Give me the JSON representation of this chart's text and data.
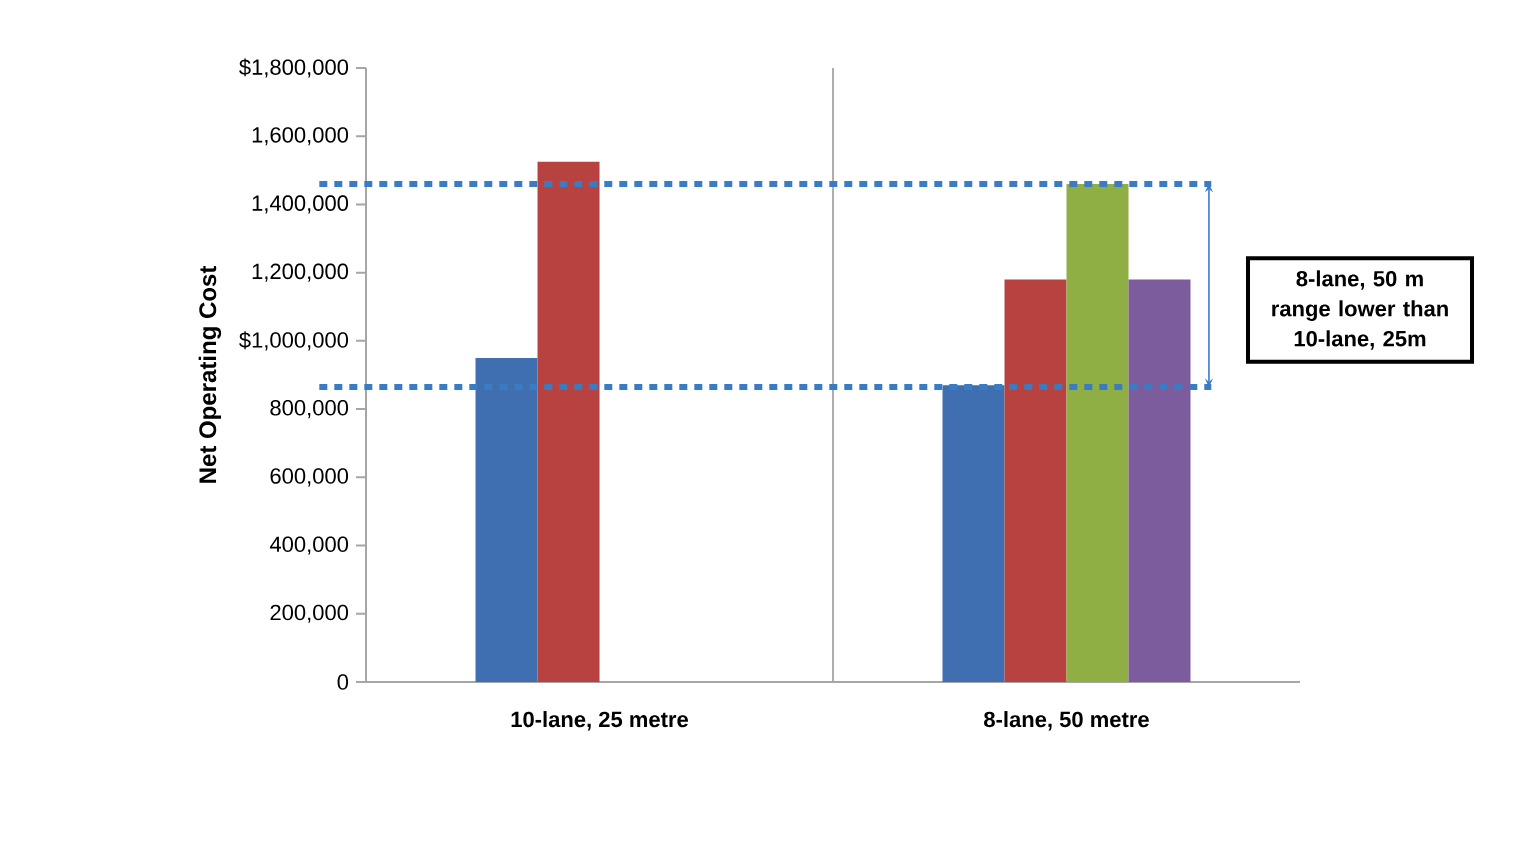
{
  "chart_data": {
    "type": "bar",
    "ylabel": "Net Operating Cost",
    "categories": [
      "10-lane, 25 metre",
      "8-lane, 50 metre"
    ],
    "series": [
      {
        "color": "#3f6fb0",
        "values": [
          950000,
          870000
        ]
      },
      {
        "color": "#b8423f",
        "values": [
          1525000,
          1180000
        ]
      },
      {
        "color": "#8fae44",
        "values": [
          null,
          1460000
        ]
      },
      {
        "color": "#7c5c9c",
        "values": [
          null,
          1180000
        ]
      }
    ],
    "ylim": [
      0,
      1800000
    ],
    "yticks": [
      {
        "value": 0,
        "label": "0"
      },
      {
        "value": 200000,
        "label": "200,000"
      },
      {
        "value": 400000,
        "label": "400,000"
      },
      {
        "value": 600000,
        "label": "600,000"
      },
      {
        "value": 800000,
        "label": "800,000"
      },
      {
        "value": 1000000,
        "label": "$1,000,000"
      },
      {
        "value": 1200000,
        "label": "1,200,000"
      },
      {
        "value": 1400000,
        "label": "1,400,000"
      },
      {
        "value": 1600000,
        "label": "1,600,000"
      },
      {
        "value": 1800000,
        "label": "$1,800,000"
      }
    ],
    "grid": "x",
    "ref_lines": [
      {
        "axis": "y",
        "value": 1460000,
        "color": "#3a7cc4",
        "line_style": "dotted"
      },
      {
        "axis": "y",
        "value": 865000,
        "color": "#3a7cc4",
        "line_style": "dotted"
      }
    ],
    "annotations": [
      "8-lane, 50 m range lower than 10-lane, 25m"
    ]
  }
}
